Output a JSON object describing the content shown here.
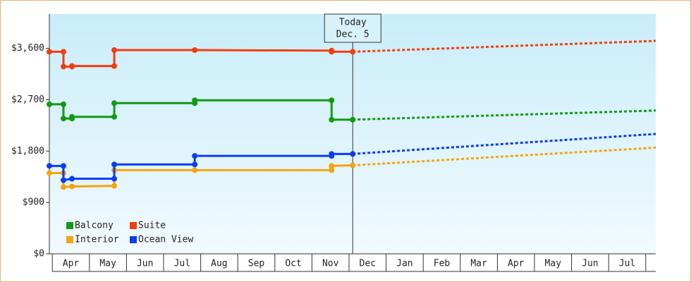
{
  "chart_data": {
    "type": "line",
    "annotation": {
      "lines": [
        "Today",
        "Dec. 5"
      ],
      "x": 8.1
    },
    "xlim": [
      -0.08,
      16.27
    ],
    "xticks": [
      {
        "value": 0.5,
        "label": "Apr"
      },
      {
        "value": 1.5,
        "label": "May"
      },
      {
        "value": 2.5,
        "label": "Jun"
      },
      {
        "value": 3.5,
        "label": "Jul"
      },
      {
        "value": 4.5,
        "label": "Aug"
      },
      {
        "value": 5.5,
        "label": "Sep"
      },
      {
        "value": 6.5,
        "label": "Oct"
      },
      {
        "value": 7.5,
        "label": "Nov"
      },
      {
        "value": 8.5,
        "label": "Dec"
      },
      {
        "value": 9.5,
        "label": "Jan"
      },
      {
        "value": 10.5,
        "label": "Feb"
      },
      {
        "value": 11.5,
        "label": "Mar"
      },
      {
        "value": 12.5,
        "label": "Apr"
      },
      {
        "value": 13.5,
        "label": "May"
      },
      {
        "value": 14.5,
        "label": "Jun"
      },
      {
        "value": 15.5,
        "label": "Jul"
      }
    ],
    "ylim": [
      0,
      4200
    ],
    "yticks": [
      {
        "value": 0,
        "label": "$0"
      },
      {
        "value": 900,
        "label": "$900"
      },
      {
        "value": 1800,
        "label": "$1,800"
      },
      {
        "value": 2700,
        "label": "$2,700"
      },
      {
        "value": 3600,
        "label": "$3,600"
      }
    ],
    "series": [
      {
        "name": "Balcony",
        "color": "#129a12",
        "x": [
          -0.08,
          0.3,
          0.3,
          0.53,
          0.53,
          1.67,
          1.67,
          3.84,
          3.84,
          7.53,
          7.53,
          8.1
        ],
        "values": [
          2620,
          2620,
          2370,
          2370,
          2400,
          2400,
          2640,
          2640,
          2690,
          2690,
          2350,
          2350
        ],
        "projection": {
          "x": [
            8.1,
            16.27
          ],
          "values": [
            2350,
            2510
          ]
        }
      },
      {
        "name": "Suite",
        "color": "#f43c0c",
        "x": [
          -0.08,
          0.3,
          0.3,
          0.53,
          0.53,
          1.67,
          1.67,
          3.84,
          7.53,
          7.53,
          8.1
        ],
        "values": [
          3540,
          3540,
          3280,
          3280,
          3290,
          3290,
          3570,
          3570,
          3560,
          3540,
          3540
        ],
        "projection": {
          "x": [
            8.1,
            16.27
          ],
          "values": [
            3540,
            3730
          ]
        }
      },
      {
        "name": "Interior",
        "color": "#f4a40c",
        "x": [
          -0.08,
          0.3,
          0.3,
          0.53,
          1.67,
          1.67,
          3.84,
          7.53,
          7.53,
          8.1
        ],
        "values": [
          1415,
          1415,
          1170,
          1180,
          1190,
          1465,
          1465,
          1465,
          1540,
          1550
        ],
        "projection": {
          "x": [
            8.1,
            16.27
          ],
          "values": [
            1550,
            1860
          ]
        }
      },
      {
        "name": "Ocean View",
        "color": "#0c3cf4",
        "x": [
          -0.08,
          0.3,
          0.3,
          0.53,
          1.67,
          1.67,
          3.84,
          3.84,
          7.53,
          7.53,
          8.1
        ],
        "values": [
          1540,
          1540,
          1290,
          1315,
          1315,
          1565,
          1565,
          1715,
          1715,
          1750,
          1750
        ],
        "projection": {
          "x": [
            8.1,
            16.27
          ],
          "values": [
            1750,
            2100
          ]
        }
      }
    ]
  }
}
